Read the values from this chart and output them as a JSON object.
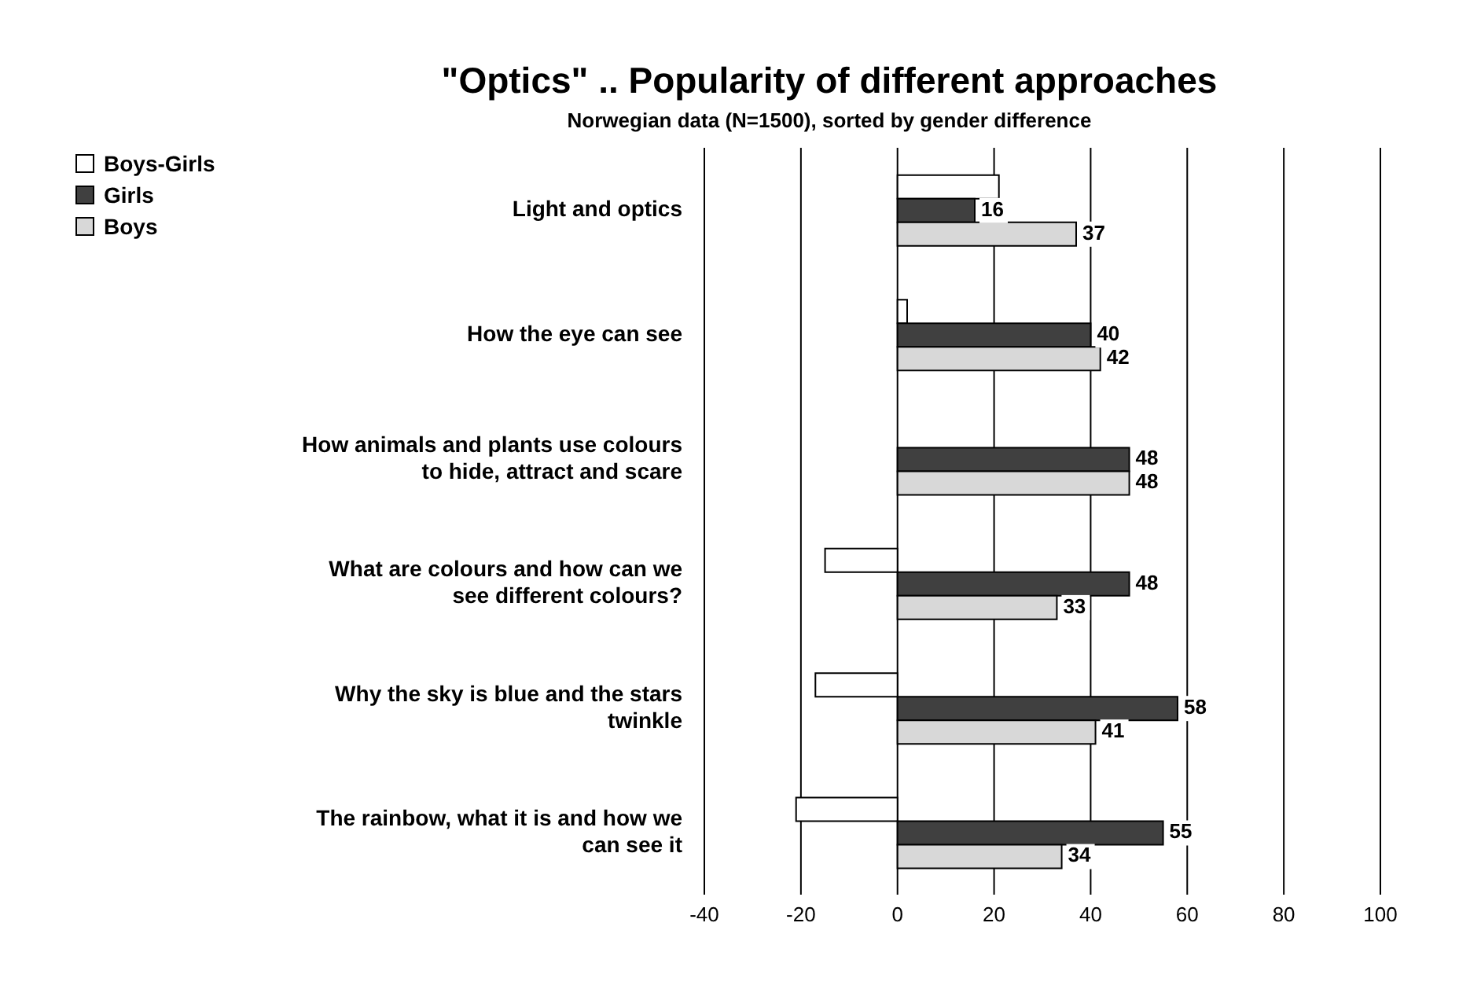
{
  "chart_data": {
    "type": "bar",
    "orientation": "horizontal",
    "title": "\"Optics\" .. Popularity of different approaches",
    "subtitle": "Norwegian data (N=1500), sorted by gender difference",
    "categories": [
      "Light and optics",
      "How the eye can see",
      "How animals and plants use colours to hide, attract and scare",
      "What are colours and how can we see different colours?",
      "Why the sky is blue and the stars twinkle",
      "The rainbow, what it is and how we can see it"
    ],
    "series": [
      {
        "name": "Boys-Girls",
        "color": "#ffffff",
        "values": [
          21,
          2,
          0,
          -15,
          -17,
          -21
        ]
      },
      {
        "name": "Girls",
        "color": "#404040",
        "values": [
          16,
          40,
          48,
          48,
          58,
          55
        ],
        "value_labels": [
          "16",
          "40",
          "48",
          "48",
          "58",
          "55"
        ]
      },
      {
        "name": "Boys",
        "color": "#d8d8d8",
        "values": [
          37,
          42,
          48,
          33,
          41,
          34
        ],
        "value_labels": [
          "37",
          "42",
          "48",
          "33",
          "41",
          "34"
        ]
      }
    ],
    "xlim": [
      -40,
      100
    ],
    "xticks": [
      -40,
      -20,
      0,
      20,
      40,
      60,
      80,
      100
    ],
    "grid": "x",
    "legend": "top left"
  }
}
